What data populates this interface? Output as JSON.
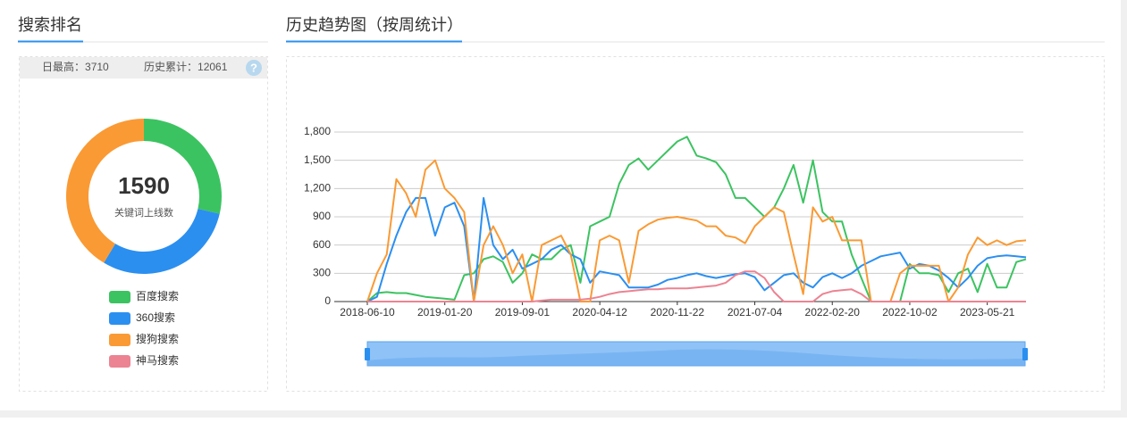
{
  "panels": [
    {
      "title": "搜索排名"
    },
    {
      "title": "历史趋势图（按周统计）"
    }
  ],
  "stats": [
    {
      "label": "日最高：",
      "value": 3710
    },
    {
      "label": "历史累计：",
      "value": 12061
    }
  ],
  "help_icon": "?",
  "chart_data": [
    {
      "type": "pie",
      "donut": true,
      "total": 1590,
      "subtitle": "关键词上线数",
      "categories": [
        "百度搜索",
        "360搜索",
        "搜狗搜索",
        "神马搜索"
      ],
      "values": [
        455,
        477,
        658,
        0
      ],
      "colors": [
        "#3cc361",
        "#2b8ff0",
        "#fa9a34",
        "#ec8392"
      ]
    },
    {
      "type": "line",
      "grid": true,
      "categories": [
        "2018-06-10",
        null,
        null,
        null,
        null,
        null,
        null,
        null,
        "2019-01-20",
        null,
        null,
        null,
        null,
        null,
        null,
        null,
        "2019-09-01",
        null,
        null,
        null,
        null,
        null,
        null,
        null,
        "2020-04-12",
        null,
        null,
        null,
        null,
        null,
        null,
        null,
        "2020-11-22",
        null,
        null,
        null,
        null,
        null,
        null,
        null,
        "2021-07-04",
        null,
        null,
        null,
        null,
        null,
        null,
        null,
        "2022-02-20",
        null,
        null,
        null,
        null,
        null,
        null,
        null,
        "2022-10-02",
        null,
        null,
        null,
        null,
        null,
        null,
        null,
        "2023-05-21",
        null,
        null,
        null,
        null
      ],
      "ylim": [
        0,
        1800
      ],
      "yticks": [
        0,
        300,
        600,
        900,
        {
          "value": 1200,
          "label": "1,200"
        },
        {
          "value": 1500,
          "label": "1,500"
        },
        {
          "value": 1800,
          "label": "1,800"
        }
      ],
      "series": [
        {
          "color": "#3cc361",
          "values": [
            0,
            90,
            100,
            90,
            90,
            70,
            50,
            40,
            30,
            20,
            280,
            300,
            450,
            480,
            420,
            200,
            300,
            500,
            450,
            450,
            550,
            600,
            200,
            800,
            850,
            900,
            1250,
            1450,
            1520,
            1400,
            1500,
            1600,
            1700,
            1750,
            1550,
            1520,
            1480,
            1350,
            1100,
            1100,
            1000,
            900,
            1000,
            1200,
            1450,
            1050,
            1500,
            950,
            850,
            850,
            500,
            250,
            0,
            0,
            0,
            0,
            400,
            300,
            300,
            280,
            100,
            300,
            350,
            100,
            400,
            150,
            150,
            420,
            450
          ]
        },
        {
          "color": "#2b8ff0",
          "values": [
            0,
            50,
            400,
            700,
            950,
            1100,
            1100,
            700,
            1000,
            1050,
            800,
            0,
            1100,
            600,
            450,
            550,
            350,
            400,
            450,
            550,
            600,
            500,
            450,
            200,
            320,
            300,
            280,
            150,
            150,
            150,
            180,
            230,
            250,
            280,
            300,
            270,
            250,
            270,
            290,
            300,
            260,
            120,
            200,
            280,
            300,
            200,
            150,
            260,
            300,
            250,
            300,
            380,
            430,
            480,
            500,
            520,
            350,
            400,
            380,
            330,
            250,
            150,
            250,
            380,
            460,
            480,
            490,
            480,
            470
          ]
        },
        {
          "color": "#fa9a34",
          "values": [
            0,
            300,
            500,
            1300,
            1150,
            900,
            1400,
            1500,
            1200,
            1100,
            950,
            0,
            600,
            800,
            600,
            300,
            500,
            0,
            600,
            650,
            700,
            500,
            0,
            0,
            650,
            700,
            650,
            200,
            750,
            820,
            870,
            890,
            900,
            880,
            860,
            800,
            800,
            700,
            680,
            620,
            800,
            900,
            1000,
            950,
            500,
            80,
            1000,
            850,
            900,
            650,
            650,
            650,
            0,
            0,
            0,
            300,
            380,
            380,
            380,
            380,
            0,
            150,
            500,
            680,
            600,
            650,
            600,
            640,
            650
          ]
        },
        {
          "color": "#ec8392",
          "values": [
            0,
            0,
            0,
            0,
            0,
            0,
            0,
            0,
            0,
            0,
            0,
            0,
            0,
            0,
            0,
            0,
            0,
            0,
            10,
            20,
            20,
            20,
            20,
            30,
            50,
            80,
            100,
            110,
            120,
            130,
            130,
            140,
            140,
            140,
            150,
            160,
            170,
            200,
            280,
            320,
            320,
            250,
            100,
            0,
            0,
            0,
            0,
            80,
            110,
            120,
            130,
            80,
            0,
            0,
            0,
            0,
            0,
            0,
            0,
            0,
            0,
            0,
            0,
            0,
            0,
            0,
            0,
            0,
            0
          ]
        }
      ]
    }
  ]
}
